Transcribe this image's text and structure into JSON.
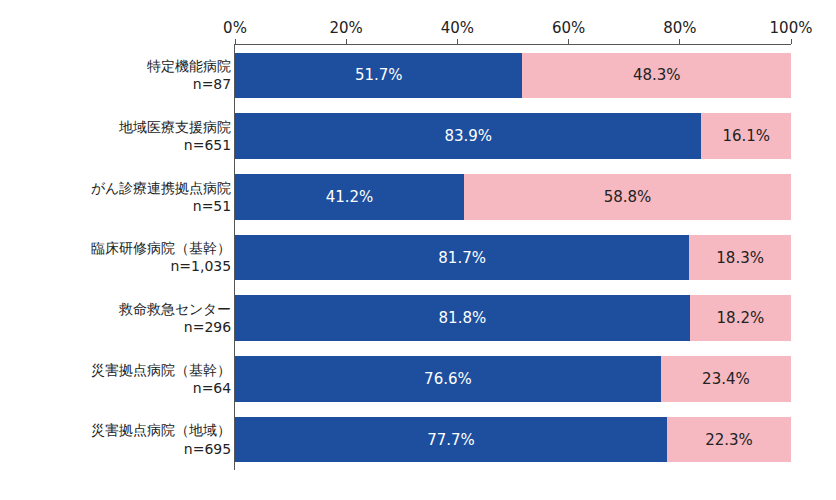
{
  "chart_data": {
    "type": "bar",
    "orientation": "horizontal",
    "stacked": true,
    "data_labels": true,
    "grid": false,
    "categories": [
      "特定機能病院\nn=87",
      "地域医療支援病院\nn=651",
      "がん診療連携拠点病院\nn=51",
      "臨床研修病院（基幹）\nn=1,035",
      "救命救急センター\nn=296",
      "災害拠点病院（基幹）\nn=64",
      "災害拠点病院（地域）\nn=695"
    ],
    "series": [
      {
        "color": "#1d4f9e",
        "values": [
          51.7,
          83.9,
          41.2,
          81.7,
          81.8,
          76.6,
          77.7
        ],
        "value_labels": [
          "51.7%",
          "83.9%",
          "41.2%",
          "81.7%",
          "81.8%",
          "76.6%",
          "77.7%"
        ]
      },
      {
        "color": "#f6b9c1",
        "values": [
          48.3,
          16.1,
          58.8,
          18.3,
          18.2,
          23.4,
          22.3
        ],
        "value_labels": [
          "48.3%",
          "16.1%",
          "58.8%",
          "18.3%",
          "18.2%",
          "23.4%",
          "22.3%"
        ]
      }
    ],
    "xlim": [
      0,
      100
    ],
    "xticks": [
      {
        "value": 0,
        "label": "0%"
      },
      {
        "value": 20,
        "label": "20%"
      },
      {
        "value": 40,
        "label": "40%"
      },
      {
        "value": 60,
        "label": "60%"
      },
      {
        "value": 80,
        "label": "80%"
      },
      {
        "value": 100,
        "label": "100%"
      }
    ]
  }
}
